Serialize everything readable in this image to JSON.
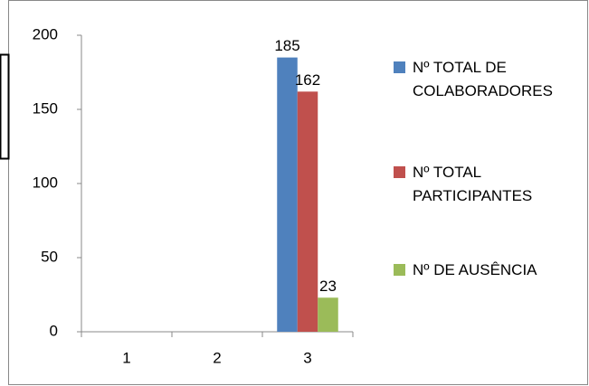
{
  "chart_data": {
    "type": "bar",
    "categories": [
      "1",
      "2",
      "3"
    ],
    "series": [
      {
        "name": "Nº TOTAL DE COLABORADORES",
        "color": "#4f81bd",
        "values": [
          null,
          null,
          185
        ]
      },
      {
        "name": "Nº TOTAL PARTICIPANTES",
        "color": "#c0504d",
        "values": [
          null,
          null,
          162
        ]
      },
      {
        "name": "Nº DE AUSÊNCIA",
        "color": "#9bbb59",
        "values": [
          null,
          null,
          23
        ]
      }
    ],
    "ylim": [
      0,
      200
    ],
    "yticks": [
      0,
      50,
      100,
      150,
      200
    ],
    "grid": false,
    "legend": "right"
  }
}
